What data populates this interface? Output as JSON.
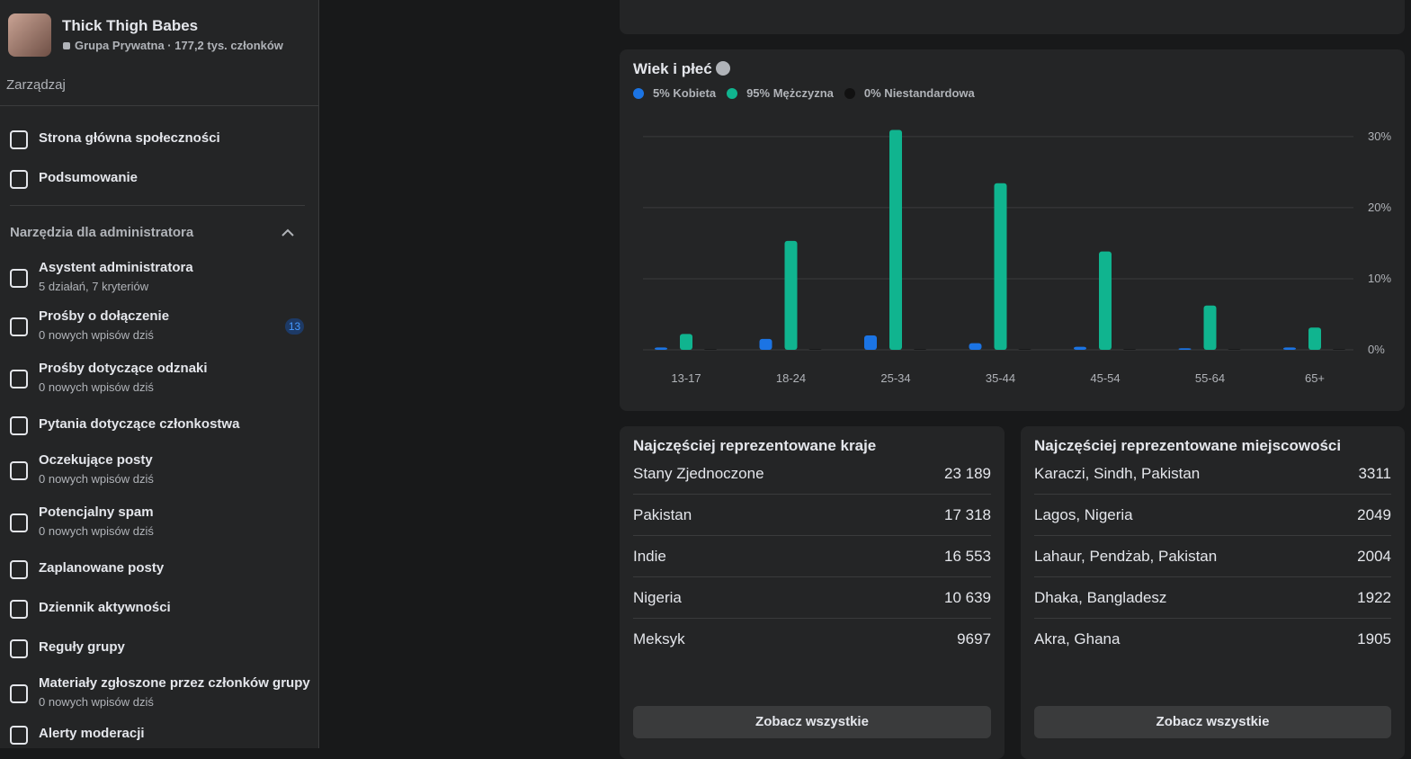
{
  "group": {
    "name": "Thick Thigh Babes",
    "meta": "Grupa Prywatna · 177,2 tys. członków"
  },
  "manage_label": "Zarządzaj",
  "nav": [
    {
      "label": "Strona główna społeczności"
    },
    {
      "label": "Podsumowanie"
    }
  ],
  "admin_tools": {
    "title": "Narzędzia dla administratora",
    "items": [
      {
        "label": "Asystent administratora",
        "sub": "5 działań, 7 kryteriów"
      },
      {
        "label": "Prośby o dołączenie",
        "sub": "0 nowych wpisów dziś",
        "badge": 13
      },
      {
        "label": "Prośby dotyczące odznaki",
        "sub": "0 nowych wpisów dziś"
      },
      {
        "label": "Pytania dotyczące członkostwa"
      },
      {
        "label": "Oczekujące posty",
        "sub": "0 nowych wpisów dziś"
      },
      {
        "label": "Potencjalny spam",
        "sub": "0 nowych wpisów dziś"
      },
      {
        "label": "Zaplanowane posty"
      },
      {
        "label": "Dziennik aktywności"
      },
      {
        "label": "Reguły grupy"
      },
      {
        "label": "Materiały zgłoszone przez członków grupy",
        "sub": "0 nowych wpisów dziś"
      },
      {
        "label": "Alerty moderacji"
      }
    ]
  },
  "chart_data": {
    "type": "bar",
    "title": "Wiek i płeć",
    "categories": [
      "13-17",
      "18-24",
      "25-34",
      "35-44",
      "45-54",
      "55-64",
      "65+"
    ],
    "series": [
      {
        "name": "5% Kobieta",
        "color": "#1b74e4",
        "values": [
          0.2,
          1.4,
          1.9,
          0.8,
          0.3,
          0.1,
          0.2
        ]
      },
      {
        "name": "95% Mężczyzna",
        "color": "#10b48f",
        "values": [
          2.1,
          15.2,
          30.8,
          23.3,
          13.7,
          6.1,
          3.0
        ]
      },
      {
        "name": "0% Niestandardowa",
        "color": "#18191a",
        "values": [
          0,
          0,
          0,
          0,
          0,
          0,
          0
        ]
      }
    ],
    "ylim": [
      0,
      32
    ],
    "yticks": [
      {
        "value": 0,
        "label": "0%"
      },
      {
        "value": 10,
        "label": "10%"
      },
      {
        "value": 20,
        "label": "20%"
      },
      {
        "value": 30,
        "label": "30%"
      }
    ],
    "grid": true
  },
  "countries": {
    "title": "Najczęściej reprezentowane kraje",
    "rows": [
      [
        "Stany Zjednoczone",
        "23 189"
      ],
      [
        "Pakistan",
        "17 318"
      ],
      [
        "Indie",
        "16 553"
      ],
      [
        "Nigeria",
        "10 639"
      ],
      [
        "Meksyk",
        "9697"
      ]
    ],
    "button": "Zobacz wszystkie"
  },
  "cities": {
    "title": "Najczęściej reprezentowane miejscowości",
    "rows": [
      [
        "Karaczi, Sindh, Pakistan",
        "3311"
      ],
      [
        "Lagos, Nigeria",
        "2049"
      ],
      [
        "Lahaur, Pendżab, Pakistan",
        "2004"
      ],
      [
        "Dhaka, Bangladesz",
        "1922"
      ],
      [
        "Akra, Ghana",
        "1905"
      ]
    ],
    "button": "Zobacz wszystkie"
  }
}
